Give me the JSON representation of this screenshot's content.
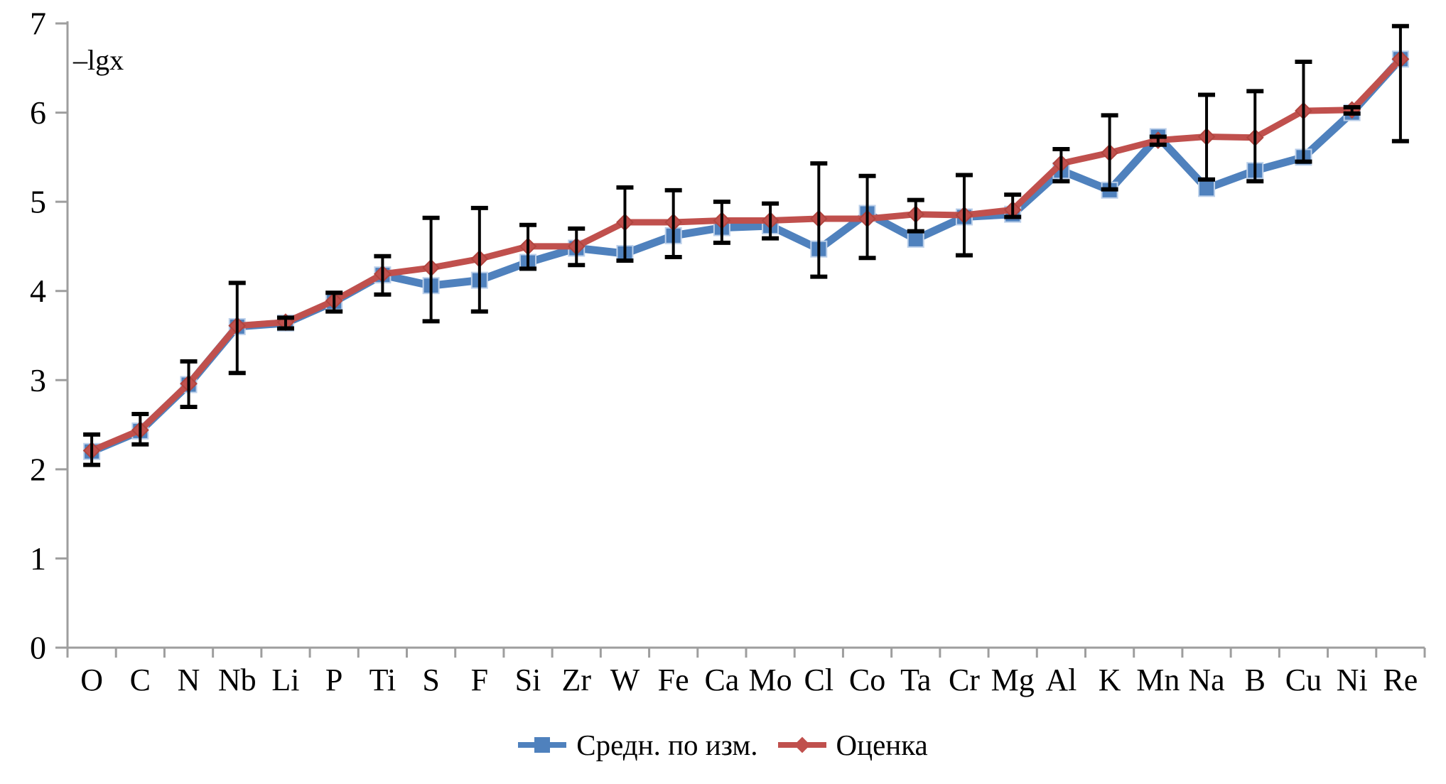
{
  "styles": {
    "background": "#ffffff",
    "axis_color": "#9e9e9e",
    "text_color": "#000000",
    "error_bar_color": "#000000",
    "series_blue": "#4f81bd",
    "series_blue_marker_stroke": "#bcd0ea",
    "series_red": "#c0504d",
    "series_red_marker_stroke": "#b0453f"
  },
  "chart_data": {
    "type": "line",
    "title": "",
    "xlabel": "",
    "ylabel": "–lgx",
    "ylim": [
      0,
      7
    ],
    "yticks": [
      0,
      1,
      2,
      3,
      4,
      5,
      6,
      7
    ],
    "grid": false,
    "legend_position": "bottom-center",
    "categories": [
      "O",
      "C",
      "N",
      "Nb",
      "Li",
      "P",
      "Ti",
      "S",
      "F",
      "Si",
      "Zr",
      "W",
      "Fe",
      "Ca",
      "Mo",
      "Cl",
      "Co",
      "Ta",
      "Cr",
      "Mg",
      "Al",
      "K",
      "Mn",
      "Na",
      "B",
      "Cu",
      "Ni",
      "Re"
    ],
    "series": [
      {
        "name": "Средн. по изм.",
        "marker": "square",
        "color": "#4f81bd",
        "marker_stroke": "#bcd0ea",
        "values": [
          2.2,
          2.43,
          2.95,
          3.6,
          3.64,
          3.88,
          4.18,
          4.06,
          4.12,
          4.32,
          4.48,
          4.42,
          4.62,
          4.71,
          4.73,
          4.47,
          4.87,
          4.58,
          4.83,
          4.86,
          5.35,
          5.13,
          5.73,
          5.15,
          5.35,
          5.5,
          6.0,
          6.6
        ]
      },
      {
        "name": "Оценка",
        "marker": "diamond",
        "color": "#c0504d",
        "marker_stroke": "#b0453f",
        "values": [
          2.21,
          2.44,
          2.96,
          3.61,
          3.65,
          3.89,
          4.19,
          4.26,
          4.36,
          4.5,
          4.5,
          4.77,
          4.77,
          4.79,
          4.79,
          4.81,
          4.81,
          4.86,
          4.85,
          4.91,
          5.43,
          5.55,
          5.69,
          5.73,
          5.72,
          6.02,
          6.03,
          6.6
        ]
      }
    ],
    "error_bars": {
      "attached_to_series": "Оценка",
      "color": "#000000",
      "low": [
        2.05,
        2.28,
        2.7,
        3.08,
        3.58,
        3.77,
        3.96,
        3.66,
        3.77,
        4.25,
        4.29,
        4.34,
        4.38,
        4.54,
        4.59,
        4.16,
        4.37,
        4.67,
        4.4,
        4.83,
        5.23,
        5.14,
        5.64,
        5.25,
        5.23,
        5.45,
        5.99,
        5.68
      ],
      "high": [
        2.39,
        2.62,
        3.21,
        4.09,
        3.7,
        3.98,
        4.39,
        4.82,
        4.93,
        4.74,
        4.7,
        5.16,
        5.13,
        5.0,
        4.98,
        5.43,
        5.29,
        5.02,
        5.3,
        5.08,
        5.59,
        5.97,
        5.73,
        6.2,
        6.24,
        6.57,
        6.06,
        6.97
      ]
    }
  }
}
